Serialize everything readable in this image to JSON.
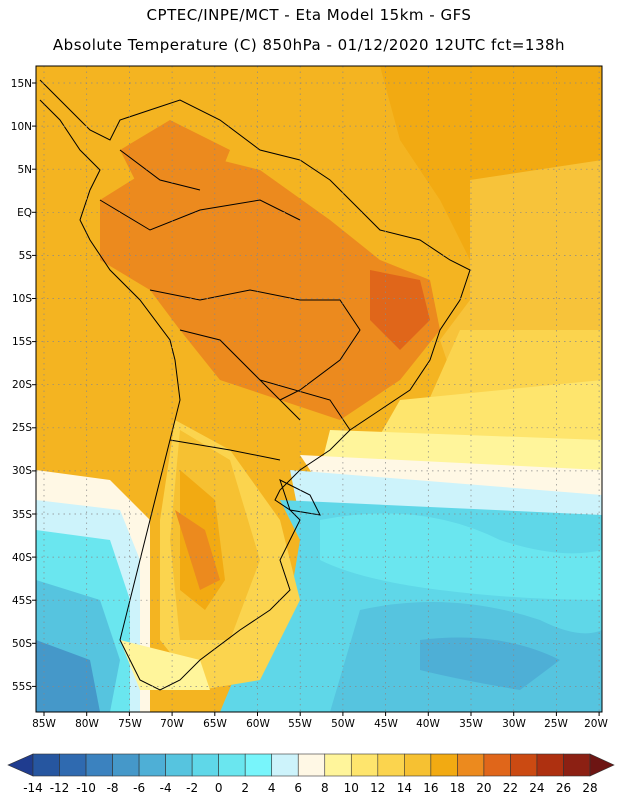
{
  "header": {
    "line1": "CPTEC/INPE/MCT -  Eta Model 15km - GFS",
    "line2": "Absolute Temperature (C) 850hPa - 01/12/2020 12UTC fct=138h"
  },
  "map": {
    "lat_labels": [
      "15N",
      "10N",
      "5N",
      "EQ",
      "5S",
      "10S",
      "15S",
      "20S",
      "25S",
      "30S",
      "35S",
      "40S",
      "45S",
      "50S",
      "55S"
    ],
    "lon_labels": [
      "85W",
      "80W",
      "75W",
      "70W",
      "65W",
      "60W",
      "55W",
      "50W",
      "45W",
      "40W",
      "35W",
      "30W",
      "25W",
      "20W"
    ]
  },
  "colorbar": {
    "labels": [
      "-14",
      "-12",
      "-10",
      "-8",
      "-6",
      "-4",
      "-2",
      "0",
      "2",
      "4",
      "6",
      "8",
      "10",
      "12",
      "14",
      "16",
      "18",
      "20",
      "22",
      "24",
      "26",
      "28"
    ],
    "colors": [
      "#1f3c8f",
      "#2656a0",
      "#2f6ab0",
      "#3b82bf",
      "#4598c9",
      "#4eafd6",
      "#56c4df",
      "#5fd7e8",
      "#6ae6ef",
      "#78f5fb",
      "#cdf3fb",
      "#fff8e5",
      "#fff59b",
      "#fee56d",
      "#fbd44e",
      "#f6c132",
      "#f2aa12",
      "#ec8a1e",
      "#e0661a",
      "#cb4a12",
      "#ae3010",
      "#8c2013",
      "#6d1513"
    ]
  }
}
